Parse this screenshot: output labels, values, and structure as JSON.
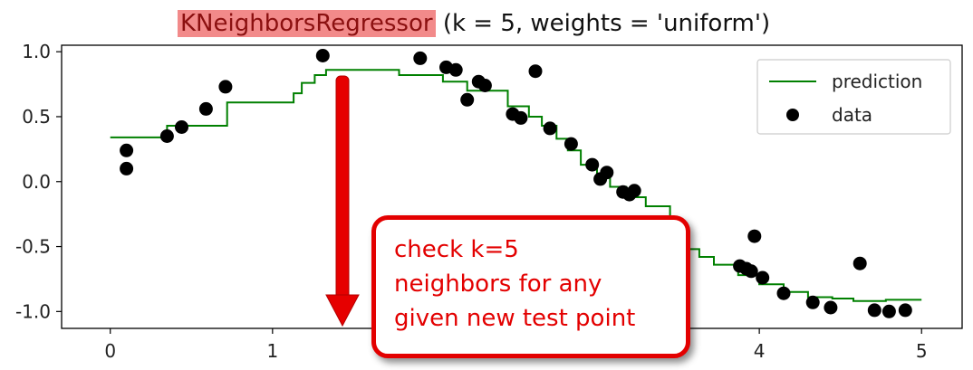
{
  "title": {
    "highlight": "KNeighborsRegressor",
    "rest": "(k = 5, weights = 'uniform')"
  },
  "callout": {
    "lines": [
      "check k=5",
      "neighbors for any",
      "given new test point"
    ],
    "color": "#e30000"
  },
  "chart_data": {
    "type": "scatter",
    "xlim": [
      -0.3,
      5.25
    ],
    "ylim": [
      -1.13,
      1.05
    ],
    "xticks": [
      0,
      1,
      2,
      3,
      4,
      5
    ],
    "xtick_labels": [
      "0",
      "1",
      "",
      "",
      "4",
      "5"
    ],
    "yticks": [
      1.0,
      0.5,
      0.0,
      -0.5,
      -1.0
    ],
    "ytick_labels": [
      "1.0",
      "0.5",
      "0.0",
      "-0.5",
      "-1.0"
    ],
    "grid": false,
    "legend": {
      "placement": "top-right",
      "entries": [
        "prediction",
        "data"
      ]
    },
    "series": [
      {
        "name": "prediction",
        "kind": "step-line",
        "color": "#008000",
        "x": [
          0.0,
          0.35,
          0.35,
          0.72,
          0.72,
          1.13,
          1.13,
          1.18,
          1.18,
          1.26,
          1.26,
          1.33,
          1.33,
          1.4,
          1.4,
          1.78,
          1.78,
          2.05,
          2.05,
          2.2,
          2.2,
          2.45,
          2.45,
          2.58,
          2.58,
          2.66,
          2.66,
          2.75,
          2.75,
          2.82,
          2.82,
          2.9,
          2.9,
          3.0,
          3.0,
          3.08,
          3.08,
          3.18,
          3.18,
          3.3,
          3.3,
          3.45,
          3.45,
          3.48,
          3.48,
          3.56,
          3.56,
          3.63,
          3.63,
          3.72,
          3.72,
          3.87,
          3.87,
          4.0,
          4.0,
          4.15,
          4.15,
          4.3,
          4.3,
          4.45,
          4.45,
          4.58,
          4.58,
          4.78,
          4.78,
          5.0
        ],
        "y": [
          0.34,
          0.34,
          0.43,
          0.43,
          0.61,
          0.61,
          0.68,
          0.68,
          0.76,
          0.76,
          0.82,
          0.82,
          0.86,
          0.86,
          0.86,
          0.86,
          0.82,
          0.82,
          0.77,
          0.77,
          0.7,
          0.7,
          0.58,
          0.58,
          0.5,
          0.5,
          0.43,
          0.43,
          0.33,
          0.33,
          0.24,
          0.24,
          0.13,
          0.13,
          0.03,
          0.03,
          -0.04,
          -0.04,
          -0.12,
          -0.12,
          -0.19,
          -0.19,
          -0.28,
          -0.28,
          -0.38,
          -0.38,
          -0.52,
          -0.52,
          -0.58,
          -0.58,
          -0.64,
          -0.64,
          -0.72,
          -0.72,
          -0.79,
          -0.79,
          -0.85,
          -0.85,
          -0.89,
          -0.89,
          -0.9,
          -0.9,
          -0.92,
          -0.92,
          -0.91,
          -0.91
        ]
      },
      {
        "name": "data",
        "kind": "points",
        "color": "#000000",
        "x": [
          0.1,
          0.1,
          0.35,
          0.44,
          0.59,
          0.71,
          1.31,
          1.91,
          2.07,
          2.13,
          2.2,
          2.27,
          2.31,
          2.48,
          2.53,
          2.62,
          2.71,
          2.84,
          2.97,
          3.02,
          3.06,
          3.16,
          3.2,
          3.23,
          3.97,
          3.88,
          3.92,
          3.95,
          4.02,
          4.15,
          4.33,
          4.44,
          4.62,
          4.71,
          4.8,
          4.9
        ],
        "y": [
          0.24,
          0.1,
          0.35,
          0.42,
          0.56,
          0.73,
          0.97,
          0.95,
          0.88,
          0.86,
          0.63,
          0.77,
          0.74,
          0.52,
          0.49,
          0.85,
          0.41,
          0.29,
          0.13,
          0.02,
          0.07,
          -0.08,
          -0.1,
          -0.07,
          -0.42,
          -0.65,
          -0.67,
          -0.69,
          -0.74,
          -0.86,
          -0.93,
          -0.97,
          -0.63,
          -0.99,
          -1.0,
          -0.99
        ]
      }
    ]
  }
}
